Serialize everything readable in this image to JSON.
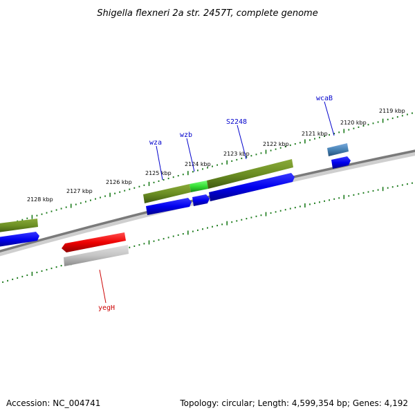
{
  "title": "Shigella flexneri 2a str. 2457T, complete genome",
  "footer": {
    "accession": "Accession: NC_004741",
    "summary": "Topology: circular; Length: 4,599,354 bp; Genes: 4,192"
  },
  "scale": {
    "unit": "kbp",
    "ticks": [
      "2128 kbp",
      "2127 kbp",
      "2126 kbp",
      "2125 kbp",
      "2124 kbp",
      "2123 kbp",
      "2122 kbp",
      "2121 kbp",
      "2120 kbp",
      "2119 kbp"
    ]
  },
  "gene_labels": [
    {
      "name": "wza",
      "color": "#0000cc"
    },
    {
      "name": "wzb",
      "color": "#0000cc"
    },
    {
      "name": "S2248",
      "color": "#0000cc"
    },
    {
      "name": "wcaB",
      "color": "#0000cc"
    },
    {
      "name": "yegH",
      "color": "#cc0000"
    }
  ],
  "colors": {
    "backbone": "#808080",
    "scale_ticks": "#1a7a1a",
    "forward_gene": "#0000ee",
    "reverse_gene": "#ee0000",
    "feature_olive": "#6b8e23",
    "feature_highlight": "#33dd33",
    "feature_steel": "#4682b4",
    "feature_gray": "#bbbbbb"
  }
}
